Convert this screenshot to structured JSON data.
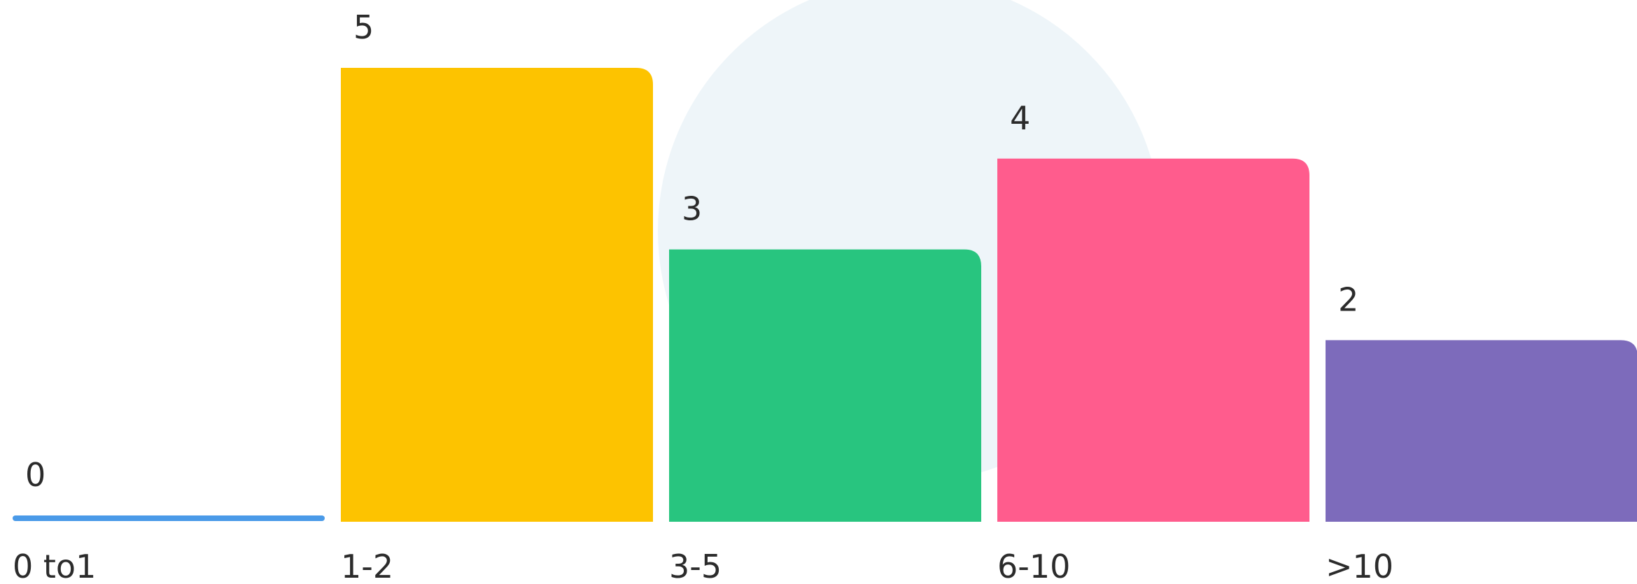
{
  "chart_data": {
    "type": "bar",
    "categories": [
      "0 to1",
      "1-2",
      "3-5",
      "6-10",
      ">10"
    ],
    "values": [
      0,
      5,
      3,
      4,
      2
    ],
    "colors": [
      "#4a9ae8",
      "#fdc300",
      "#28c57f",
      "#ff5c8d",
      "#7d6bbb"
    ],
    "grid": false
  }
}
